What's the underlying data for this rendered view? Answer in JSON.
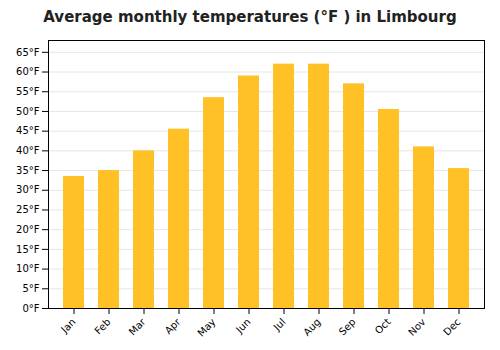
{
  "chart_data": {
    "type": "bar",
    "title": "Average monthly temperatures (°F ) in Limbourg",
    "categories": [
      "Jan",
      "Feb",
      "Mar",
      "Apr",
      "May",
      "Jun",
      "Jul",
      "Aug",
      "Sep",
      "Oct",
      "Nov",
      "Dec"
    ],
    "values": [
      33.5,
      35.0,
      40.0,
      45.5,
      53.5,
      59.0,
      62.0,
      62.0,
      57.0,
      50.5,
      41.0,
      35.5
    ],
    "color": "#FFC125",
    "ylim": [
      0,
      68
    ],
    "yticks": [
      {
        "value": 0,
        "label": "0°F"
      },
      {
        "value": 5,
        "label": "5°F"
      },
      {
        "value": 10,
        "label": "10°F"
      },
      {
        "value": 15,
        "label": "15°F"
      },
      {
        "value": 20,
        "label": "20°F"
      },
      {
        "value": 25,
        "label": "25°F"
      },
      {
        "value": 30,
        "label": "30°F"
      },
      {
        "value": 35,
        "label": "35°F"
      },
      {
        "value": 40,
        "label": "40°F"
      },
      {
        "value": 45,
        "label": "45°F"
      },
      {
        "value": 50,
        "label": "50°F"
      },
      {
        "value": 55,
        "label": "55°F"
      },
      {
        "value": 60,
        "label": "60°F"
      },
      {
        "value": 65,
        "label": "65°F"
      }
    ],
    "grid": true
  }
}
